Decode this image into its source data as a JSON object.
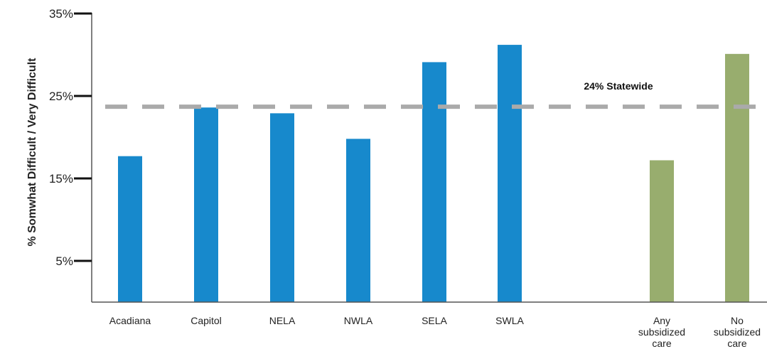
{
  "chart_data": {
    "type": "bar",
    "categories": [
      "Acadiana",
      "Capitol",
      "NELA",
      "NWLA",
      "SELA",
      "SWLA",
      "Any subsidized care",
      "No subsidized care"
    ],
    "category_lines": [
      [
        "Acadiana"
      ],
      [
        "Capitol"
      ],
      [
        "NELA"
      ],
      [
        "NWLA"
      ],
      [
        "SELA"
      ],
      [
        "SWLA"
      ],
      [
        "Any",
        "subsidized",
        "care"
      ],
      [
        "No",
        "subsidized",
        "care"
      ]
    ],
    "values": [
      17.7,
      23.6,
      22.9,
      19.8,
      29.1,
      31.2,
      17.2,
      30.1
    ],
    "bar_colors": [
      "#1789cc",
      "#1789cc",
      "#1789cc",
      "#1789cc",
      "#1789cc",
      "#1789cc",
      "#98ad6e",
      "#98ad6e"
    ],
    "ylabel": "% Somwhat Difficult / Very Difficult",
    "xlabel": "",
    "ylim": [
      0,
      35
    ],
    "y_ticks": [
      5,
      15,
      25,
      35
    ],
    "y_tick_labels": [
      "5%",
      "15%",
      "25%",
      "35%"
    ],
    "reference_line": {
      "value": 23.7,
      "label": "24% Statewide",
      "color": "#aaaaaa"
    },
    "grid": false
  }
}
